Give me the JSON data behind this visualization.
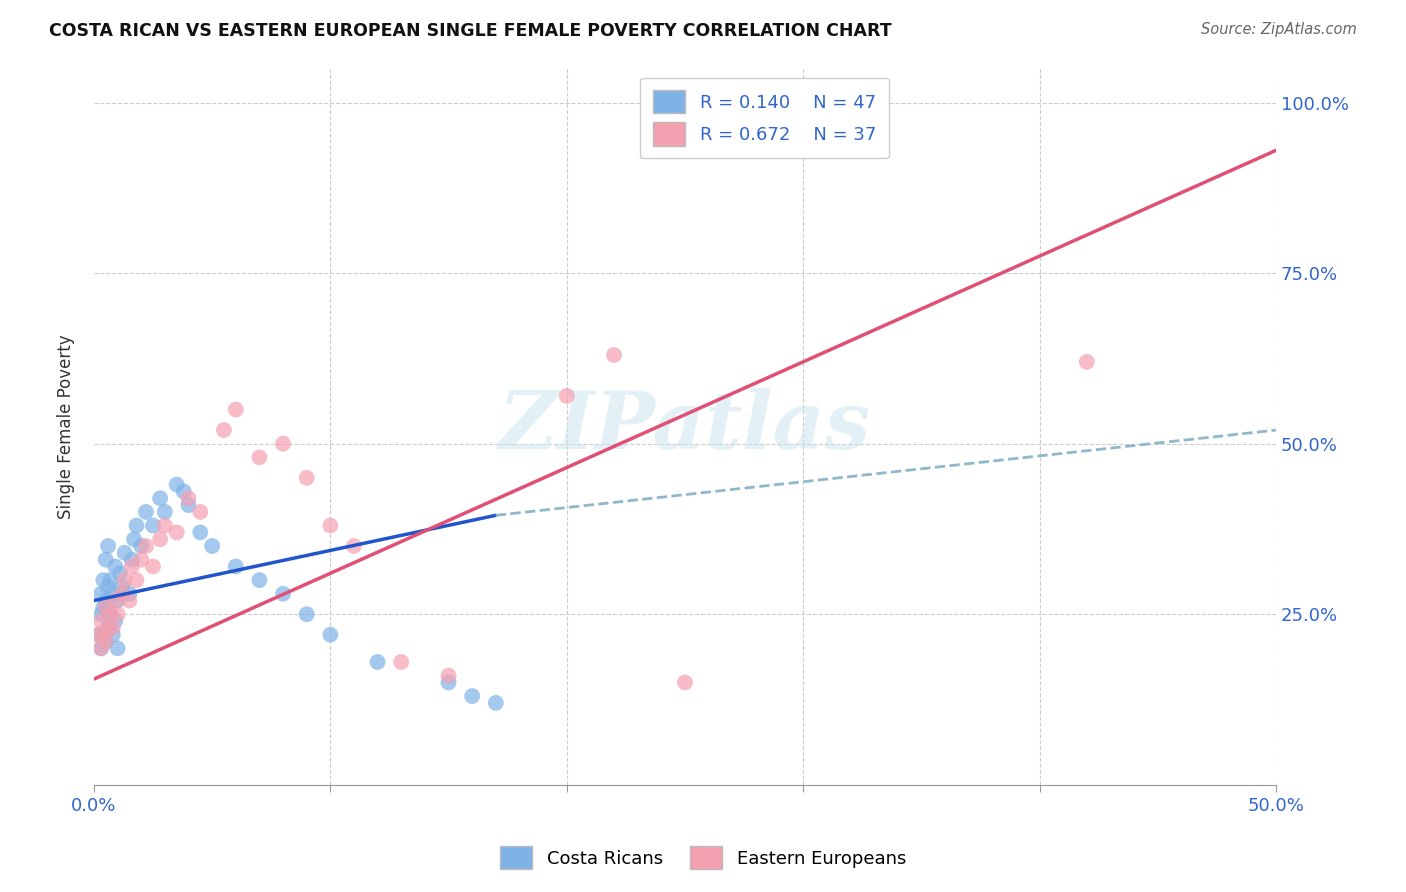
{
  "title": "COSTA RICAN VS EASTERN EUROPEAN SINGLE FEMALE POVERTY CORRELATION CHART",
  "source": "Source: ZipAtlas.com",
  "ylabel": "Single Female Poverty",
  "x_min": 0.0,
  "x_max": 0.5,
  "y_min": 0.0,
  "y_max": 1.05,
  "x_ticks": [
    0.0,
    0.1,
    0.2,
    0.3,
    0.4,
    0.5
  ],
  "x_tick_labels": [
    "0.0%",
    "",
    "",
    "",
    "",
    "50.0%"
  ],
  "y_ticks": [
    0.0,
    0.25,
    0.5,
    0.75,
    1.0
  ],
  "y_tick_labels": [
    "",
    "25.0%",
    "50.0%",
    "75.0%",
    "100.0%"
  ],
  "costa_rican_color": "#7fb3e8",
  "eastern_european_color": "#f4a0b0",
  "trendline_cr_color": "#2255cc",
  "trendline_ee_color": "#e05075",
  "trendline_ext_color": "#90b8cc",
  "R_cr": 0.14,
  "N_cr": 47,
  "R_ee": 0.672,
  "N_ee": 37,
  "watermark": "ZIPatlas",
  "cr_trend_x0": 0.0,
  "cr_trend_y0": 0.27,
  "cr_trend_x1": 0.17,
  "cr_trend_y1": 0.395,
  "cr_trend_x_ext": 0.5,
  "cr_trend_y_ext": 0.52,
  "ee_trend_x0": 0.0,
  "ee_trend_y0": 0.155,
  "ee_trend_x1": 0.5,
  "ee_trend_y1": 0.93,
  "costa_ricans_x": [
    0.002,
    0.003,
    0.003,
    0.003,
    0.004,
    0.004,
    0.004,
    0.005,
    0.005,
    0.005,
    0.006,
    0.006,
    0.006,
    0.007,
    0.007,
    0.008,
    0.008,
    0.009,
    0.009,
    0.01,
    0.01,
    0.011,
    0.012,
    0.013,
    0.015,
    0.016,
    0.017,
    0.018,
    0.02,
    0.022,
    0.025,
    0.028,
    0.03,
    0.035,
    0.038,
    0.04,
    0.045,
    0.05,
    0.06,
    0.07,
    0.08,
    0.09,
    0.1,
    0.12,
    0.15,
    0.16,
    0.17
  ],
  "costa_ricans_y": [
    0.22,
    0.2,
    0.25,
    0.28,
    0.22,
    0.26,
    0.3,
    0.21,
    0.27,
    0.33,
    0.23,
    0.29,
    0.35,
    0.25,
    0.3,
    0.22,
    0.28,
    0.24,
    0.32,
    0.2,
    0.27,
    0.31,
    0.29,
    0.34,
    0.28,
    0.33,
    0.36,
    0.38,
    0.35,
    0.4,
    0.38,
    0.42,
    0.4,
    0.44,
    0.43,
    0.41,
    0.37,
    0.35,
    0.32,
    0.3,
    0.28,
    0.25,
    0.22,
    0.18,
    0.15,
    0.13,
    0.12
  ],
  "eastern_europeans_x": [
    0.002,
    0.003,
    0.003,
    0.004,
    0.005,
    0.005,
    0.006,
    0.007,
    0.008,
    0.009,
    0.01,
    0.012,
    0.013,
    0.015,
    0.016,
    0.018,
    0.02,
    0.022,
    0.025,
    0.028,
    0.03,
    0.035,
    0.04,
    0.045,
    0.055,
    0.06,
    0.07,
    0.08,
    0.09,
    0.1,
    0.11,
    0.13,
    0.15,
    0.2,
    0.22,
    0.25,
    0.42
  ],
  "eastern_europeans_y": [
    0.22,
    0.2,
    0.24,
    0.22,
    0.21,
    0.26,
    0.23,
    0.25,
    0.23,
    0.27,
    0.25,
    0.28,
    0.3,
    0.27,
    0.32,
    0.3,
    0.33,
    0.35,
    0.32,
    0.36,
    0.38,
    0.37,
    0.42,
    0.4,
    0.52,
    0.55,
    0.48,
    0.5,
    0.45,
    0.38,
    0.35,
    0.18,
    0.16,
    0.57,
    0.63,
    0.15,
    0.62
  ]
}
